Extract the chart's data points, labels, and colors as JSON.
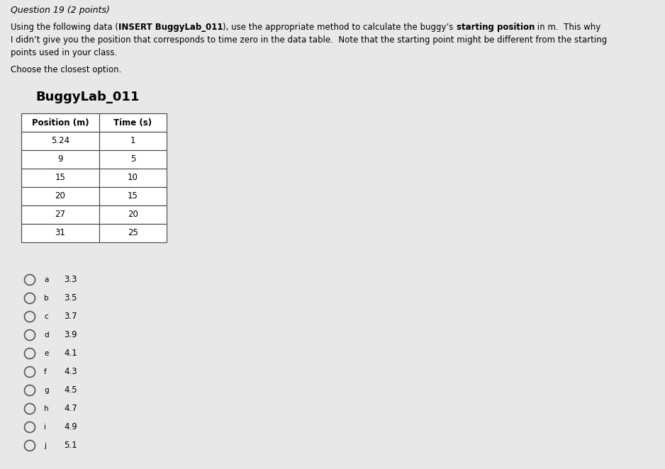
{
  "question_header": "Question 19 (2 points)",
  "segments_line1": [
    [
      "Using the following data (",
      false
    ],
    [
      "INSERT BuggyLab_011",
      true
    ],
    [
      "), use the appropriate method to calculate the buggy’s ",
      false
    ],
    [
      "starting position",
      true
    ],
    [
      " in m.  This why",
      false
    ]
  ],
  "line2": "I didn’t give you the position that corresponds to time zero in the data table.  Note that the starting point might be different from the starting",
  "line3": "points used in your class.",
  "instruction": "Choose the closest option.",
  "table_title": "BuggyLab_011",
  "table_headers": [
    "Position (m)",
    "Time (s)"
  ],
  "table_data": [
    [
      "5.24",
      "1"
    ],
    [
      "9",
      "5"
    ],
    [
      "15",
      "10"
    ],
    [
      "20",
      "15"
    ],
    [
      "27",
      "20"
    ],
    [
      "31",
      "25"
    ]
  ],
  "options": [
    [
      "a",
      "3.3"
    ],
    [
      "b",
      "3.5"
    ],
    [
      "c",
      "3.7"
    ],
    [
      "d",
      "3.9"
    ],
    [
      "e",
      "4.1"
    ],
    [
      "f",
      "4.3"
    ],
    [
      "g",
      "4.5"
    ],
    [
      "h",
      "4.7"
    ],
    [
      "i",
      "4.9"
    ],
    [
      "j",
      "5.1"
    ]
  ],
  "background_color": "#e8e8e8",
  "text_color": "#000000",
  "fontsize_header": 9,
  "fontsize_body": 8.5,
  "fontsize_title": 13
}
